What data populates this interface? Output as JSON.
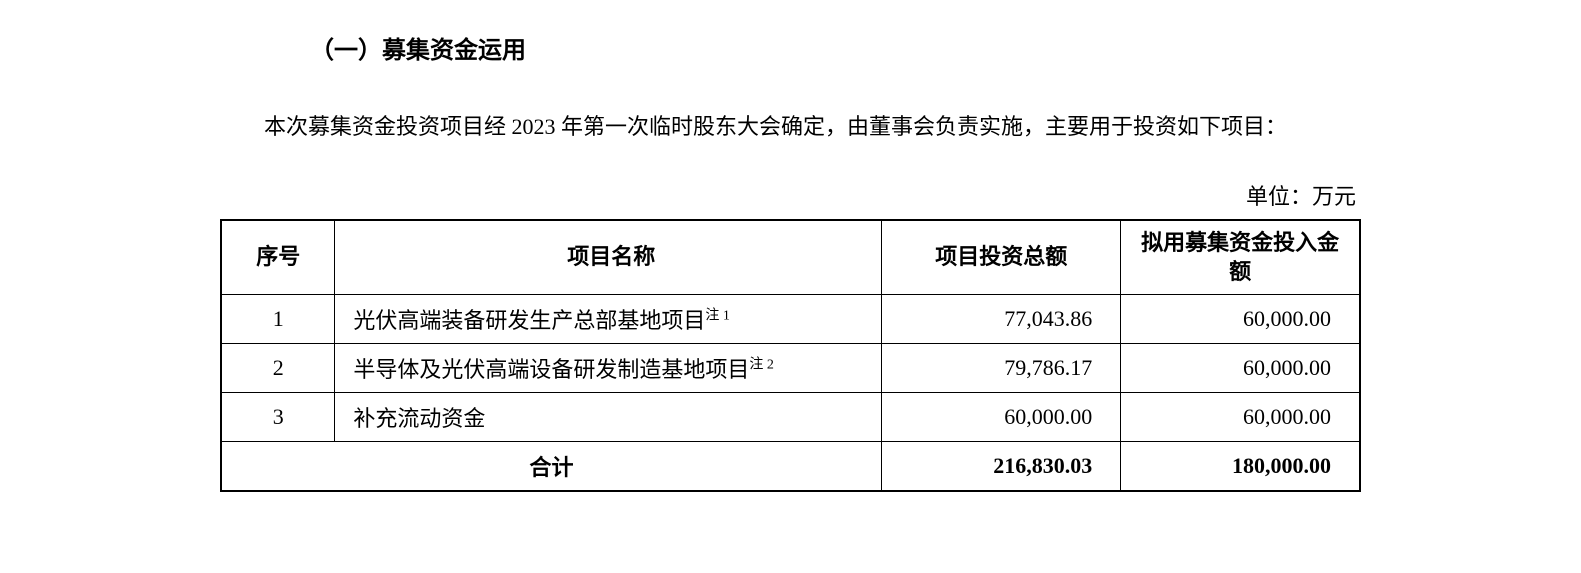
{
  "heading": "（一）募集资金运用",
  "paragraph": "本次募集资金投资项目经 2023 年第一次临时股东大会确定，由董事会负责实施，主要用于投资如下项目：",
  "unit_label": "单位：万元",
  "table": {
    "columns": [
      "序号",
      "项目名称",
      "项目投资总额",
      "拟用募集资金投入金额"
    ],
    "rows": [
      {
        "seq": "1",
        "name": "光伏高端装备研发生产总部基地项目",
        "note": "注 1",
        "total_investment": "77,043.86",
        "fund_amount": "60,000.00"
      },
      {
        "seq": "2",
        "name": "半导体及光伏高端设备研发制造基地项目",
        "note": "注 2",
        "total_investment": "79,786.17",
        "fund_amount": "60,000.00"
      },
      {
        "seq": "3",
        "name": "补充流动资金",
        "note": "",
        "total_investment": "60,000.00",
        "fund_amount": "60,000.00"
      }
    ],
    "total": {
      "label": "合计",
      "total_investment": "216,830.03",
      "fund_amount": "180,000.00"
    }
  },
  "styling": {
    "font_family": "SimSun",
    "heading_fontsize": 24,
    "body_fontsize": 22,
    "superscript_fontsize": 14,
    "text_color": "#000000",
    "background_color": "#ffffff",
    "border_color": "#000000",
    "outer_border_width": 2.5,
    "inner_border_width": 1,
    "column_widths_pct": [
      10,
      48,
      21,
      21
    ],
    "column_alignments": [
      "center",
      "left",
      "right",
      "right"
    ]
  }
}
